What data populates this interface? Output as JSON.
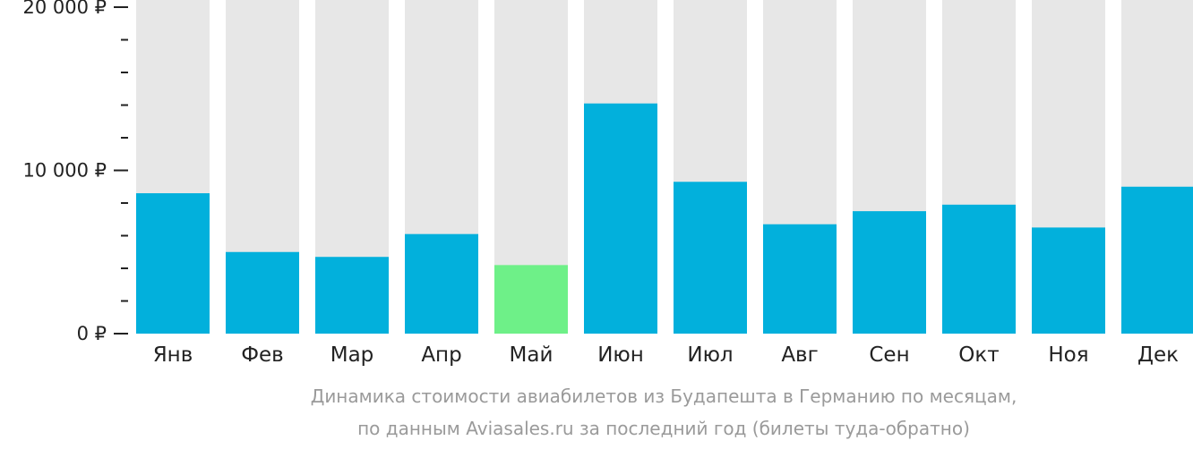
{
  "chart_data": {
    "type": "bar",
    "categories": [
      "Янв",
      "Фев",
      "Мар",
      "Апр",
      "Май",
      "Июн",
      "Июл",
      "Авг",
      "Сен",
      "Окт",
      "Ноя",
      "Дек"
    ],
    "values": [
      8600,
      5000,
      4700,
      6100,
      4200,
      14100,
      9300,
      6700,
      7500,
      7900,
      6500,
      9000
    ],
    "ylim": [
      0,
      20000
    ],
    "y_ticks": [
      {
        "value": 0,
        "label": "0 ₽"
      },
      {
        "value": 10000,
        "label": "10 000 ₽"
      },
      {
        "value": 20000,
        "label": "20 000 ₽"
      }
    ],
    "minor_tick_step": 2000,
    "bar_color": "#02b0dc",
    "highlight_color": "#6ef088",
    "highlight_index": 4,
    "background_bar_color": "#e7e7e7",
    "caption": [
      "Динамика стоимости авиабилетов из Будапешта в Германию по месяцам,",
      "по данным Aviasales.ru за последний год (билеты туда-обратно)"
    ]
  }
}
